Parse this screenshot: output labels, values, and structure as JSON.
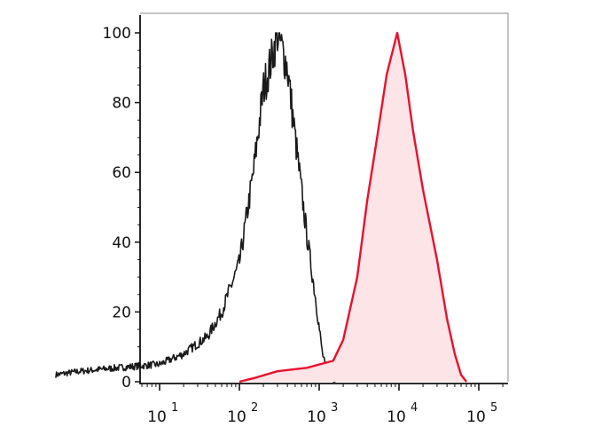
{
  "chart_data": {
    "type": "area",
    "title": "",
    "xlabel": "",
    "ylabel": "",
    "x_scale": "log",
    "xlim": [
      0.5,
      200000
    ],
    "ylim": [
      0,
      100
    ],
    "grid": false,
    "legend": "none",
    "y_ticks": [
      {
        "value": 0,
        "label": "0"
      },
      {
        "value": 20,
        "label": "20"
      },
      {
        "value": 40,
        "label": "40"
      },
      {
        "value": 60,
        "label": "60"
      },
      {
        "value": 80,
        "label": "80"
      },
      {
        "value": 100,
        "label": "100"
      }
    ],
    "x_ticks": [
      {
        "value": 10,
        "base": "10",
        "exp": "1"
      },
      {
        "value": 100,
        "base": "10",
        "exp": "2"
      },
      {
        "value": 1000,
        "base": "10",
        "exp": "3"
      },
      {
        "value": 10000,
        "base": "10",
        "exp": "4"
      },
      {
        "value": 100000,
        "base": "10",
        "exp": "5"
      }
    ],
    "series": [
      {
        "style": "line",
        "color": "#1a1a1a",
        "points": [
          [
            0.5,
            2
          ],
          [
            1,
            3
          ],
          [
            3,
            4
          ],
          [
            10,
            5
          ],
          [
            20,
            8
          ],
          [
            40,
            13
          ],
          [
            60,
            20
          ],
          [
            100,
            34
          ],
          [
            150,
            60
          ],
          [
            200,
            84
          ],
          [
            250,
            92
          ],
          [
            300,
            100
          ],
          [
            400,
            90
          ],
          [
            500,
            70
          ],
          [
            700,
            42
          ],
          [
            900,
            24
          ],
          [
            1100,
            8
          ],
          [
            1300,
            1
          ],
          [
            1600,
            0
          ]
        ]
      },
      {
        "style": "filled",
        "color": "#e8112d",
        "fill": "#fde4e6",
        "points": [
          [
            100,
            0
          ],
          [
            150,
            1
          ],
          [
            300,
            3
          ],
          [
            700,
            4
          ],
          [
            1500,
            6
          ],
          [
            2000,
            12
          ],
          [
            3000,
            30
          ],
          [
            4000,
            52
          ],
          [
            5000,
            66
          ],
          [
            7000,
            88
          ],
          [
            9500,
            100
          ],
          [
            12000,
            88
          ],
          [
            15000,
            72
          ],
          [
            20000,
            55
          ],
          [
            25000,
            44
          ],
          [
            30000,
            35
          ],
          [
            40000,
            18
          ],
          [
            50000,
            8
          ],
          [
            60000,
            2
          ],
          [
            70000,
            0
          ]
        ]
      }
    ]
  },
  "colors": {
    "axis": "#111111",
    "frame": "#888888",
    "control_line": "#1a1a1a",
    "sample_line": "#e8112d",
    "sample_fill": "#fde4e6"
  }
}
